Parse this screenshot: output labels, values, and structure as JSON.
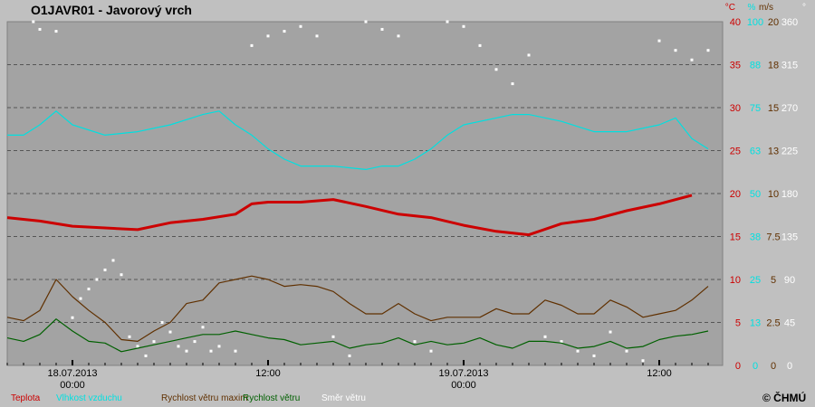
{
  "chart_data": {
    "type": "line",
    "title": "O1JAVR01 - Javorový vrch",
    "copyright": "© ČHMÚ",
    "hours_span": 46,
    "x_ticks": [
      {
        "hour": 0,
        "label": "18.07.2013",
        "label2": "00:00"
      },
      {
        "hour": 12,
        "label": "12:00",
        "label2": ""
      },
      {
        "hour": 24,
        "label": "19.07.2013",
        "label2": "00:00"
      },
      {
        "hour": 36,
        "label": "12:00",
        "label2": ""
      }
    ],
    "axes": [
      {
        "unit": "°C",
        "color": "#cc0000",
        "min": 0,
        "max": 40,
        "ticks": [
          "0",
          "5",
          "10",
          "15",
          "20",
          "25",
          "30",
          "35",
          "40"
        ]
      },
      {
        "unit": "%",
        "color": "#00e0e0",
        "min": 0,
        "max": 100,
        "ticks": [
          "0",
          "13",
          "25",
          "38",
          "50",
          "63",
          "75",
          "88",
          "100"
        ]
      },
      {
        "unit": "m/s",
        "color": "#603000",
        "min": 0,
        "max": 20,
        "ticks": [
          "0",
          "2.5",
          "5",
          "7.5",
          "10",
          "13",
          "15",
          "18",
          "20"
        ]
      },
      {
        "unit": "°",
        "color": "#ffffff",
        "min": 0,
        "max": 360,
        "ticks": [
          "0",
          "45",
          "90",
          "135",
          "180",
          "225",
          "270",
          "315",
          "360"
        ]
      }
    ],
    "series": [
      {
        "name": "Teplota",
        "axis": 0,
        "color": "#cc0000",
        "style": "line-thick",
        "points": [
          [
            -4,
            17.2
          ],
          [
            -2,
            16.8
          ],
          [
            0,
            16.2
          ],
          [
            2,
            16.0
          ],
          [
            4,
            15.8
          ],
          [
            6,
            16.6
          ],
          [
            8,
            17.0
          ],
          [
            10,
            17.6
          ],
          [
            11,
            18.8
          ],
          [
            12,
            19.0
          ],
          [
            14,
            19.0
          ],
          [
            16,
            19.3
          ],
          [
            18,
            18.5
          ],
          [
            20,
            17.6
          ],
          [
            22,
            17.2
          ],
          [
            24,
            16.3
          ],
          [
            26,
            15.6
          ],
          [
            28,
            15.2
          ],
          [
            30,
            16.5
          ],
          [
            32,
            17.0
          ],
          [
            34,
            18.0
          ],
          [
            36,
            18.8
          ],
          [
            38,
            19.8
          ],
          [
            40,
            20.5
          ],
          [
            41,
            21.0
          ],
          [
            42,
            20.6
          ],
          [
            42.5,
            20.5
          ]
        ]
      },
      {
        "name": "Vlhkost vzduchu",
        "axis": 1,
        "color": "#00e0e0",
        "style": "line",
        "points": [
          [
            -4,
            67
          ],
          [
            -3,
            67
          ],
          [
            -2,
            70
          ],
          [
            -1,
            74
          ],
          [
            0,
            70
          ],
          [
            2,
            67
          ],
          [
            4,
            68
          ],
          [
            6,
            70
          ],
          [
            8,
            73
          ],
          [
            9,
            74
          ],
          [
            10,
            70
          ],
          [
            11,
            67
          ],
          [
            12,
            63
          ],
          [
            13,
            60
          ],
          [
            14,
            58
          ],
          [
            16,
            58
          ],
          [
            18,
            57
          ],
          [
            19,
            58
          ],
          [
            20,
            58
          ],
          [
            21,
            60
          ],
          [
            22,
            63
          ],
          [
            23,
            67
          ],
          [
            24,
            70
          ],
          [
            26,
            72
          ],
          [
            27,
            73
          ],
          [
            28,
            73
          ],
          [
            30,
            71
          ],
          [
            32,
            68
          ],
          [
            34,
            68
          ],
          [
            36,
            70
          ],
          [
            37,
            72
          ],
          [
            38,
            66
          ],
          [
            39,
            63
          ],
          [
            40,
            62
          ],
          [
            41,
            60
          ],
          [
            42,
            58
          ],
          [
            42.5,
            61
          ]
        ]
      },
      {
        "name": "Rychlost větru maxim",
        "axis": 2,
        "color": "#603000",
        "style": "line",
        "points": [
          [
            -4,
            2.8
          ],
          [
            -3,
            2.6
          ],
          [
            -2,
            3.2
          ],
          [
            -1,
            5.0
          ],
          [
            0,
            4.0
          ],
          [
            1,
            3.2
          ],
          [
            2,
            2.5
          ],
          [
            3,
            1.5
          ],
          [
            4,
            1.4
          ],
          [
            5,
            2.0
          ],
          [
            6,
            2.5
          ],
          [
            7,
            3.6
          ],
          [
            8,
            3.8
          ],
          [
            9,
            4.8
          ],
          [
            10,
            5.0
          ],
          [
            11,
            5.2
          ],
          [
            12,
            5.0
          ],
          [
            13,
            4.6
          ],
          [
            14,
            4.7
          ],
          [
            15,
            4.6
          ],
          [
            16,
            4.3
          ],
          [
            17,
            3.6
          ],
          [
            18,
            3.0
          ],
          [
            19,
            3.0
          ],
          [
            20,
            3.6
          ],
          [
            21,
            3.0
          ],
          [
            22,
            2.6
          ],
          [
            23,
            2.8
          ],
          [
            24,
            2.8
          ],
          [
            25,
            2.8
          ],
          [
            26,
            3.3
          ],
          [
            27,
            3.0
          ],
          [
            28,
            3.0
          ],
          [
            29,
            3.8
          ],
          [
            30,
            3.5
          ],
          [
            31,
            3.0
          ],
          [
            32,
            3.0
          ],
          [
            33,
            3.8
          ],
          [
            34,
            3.4
          ],
          [
            35,
            2.8
          ],
          [
            36,
            3.0
          ],
          [
            37,
            3.2
          ],
          [
            38,
            3.8
          ],
          [
            39,
            4.6
          ],
          [
            40,
            5.6
          ],
          [
            41,
            8.0
          ],
          [
            41.5,
            6.8
          ],
          [
            42,
            5.0
          ],
          [
            42.5,
            4.8
          ]
        ]
      },
      {
        "name": "Rychlost větru",
        "axis": 2,
        "color": "#006000",
        "style": "line",
        "points": [
          [
            -4,
            1.6
          ],
          [
            -3,
            1.4
          ],
          [
            -2,
            1.8
          ],
          [
            -1,
            2.7
          ],
          [
            0,
            2.0
          ],
          [
            1,
            1.4
          ],
          [
            2,
            1.3
          ],
          [
            3,
            0.8
          ],
          [
            4,
            1.0
          ],
          [
            5,
            1.2
          ],
          [
            6,
            1.4
          ],
          [
            7,
            1.6
          ],
          [
            8,
            1.8
          ],
          [
            9,
            1.8
          ],
          [
            10,
            2.0
          ],
          [
            11,
            1.8
          ],
          [
            12,
            1.6
          ],
          [
            13,
            1.5
          ],
          [
            14,
            1.2
          ],
          [
            15,
            1.3
          ],
          [
            16,
            1.4
          ],
          [
            17,
            1.0
          ],
          [
            18,
            1.2
          ],
          [
            19,
            1.3
          ],
          [
            20,
            1.6
          ],
          [
            21,
            1.2
          ],
          [
            22,
            1.4
          ],
          [
            23,
            1.2
          ],
          [
            24,
            1.3
          ],
          [
            25,
            1.6
          ],
          [
            26,
            1.2
          ],
          [
            27,
            1.0
          ],
          [
            28,
            1.4
          ],
          [
            29,
            1.4
          ],
          [
            30,
            1.3
          ],
          [
            31,
            1.0
          ],
          [
            32,
            1.1
          ],
          [
            33,
            1.4
          ],
          [
            34,
            1.0
          ],
          [
            35,
            1.1
          ],
          [
            36,
            1.5
          ],
          [
            37,
            1.7
          ],
          [
            38,
            1.8
          ],
          [
            39,
            2.0
          ],
          [
            40,
            2.0
          ],
          [
            41,
            2.2
          ],
          [
            41.5,
            1.6
          ],
          [
            42,
            1.2
          ],
          [
            42.5,
            1.5
          ]
        ]
      },
      {
        "name": "Směr  větru",
        "axis": 3,
        "color": "#ffffff",
        "style": "dots",
        "points": [
          [
            -2.4,
            360
          ],
          [
            -2.0,
            352
          ],
          [
            -1.0,
            350
          ],
          [
            0,
            50
          ],
          [
            0.5,
            70
          ],
          [
            1,
            80
          ],
          [
            1.5,
            90
          ],
          [
            2,
            100
          ],
          [
            2.5,
            110
          ],
          [
            3,
            95
          ],
          [
            3.5,
            30
          ],
          [
            4,
            20
          ],
          [
            4.5,
            10
          ],
          [
            5,
            25
          ],
          [
            5.5,
            45
          ],
          [
            6,
            35
          ],
          [
            6.5,
            20
          ],
          [
            7,
            15
          ],
          [
            7.5,
            25
          ],
          [
            8,
            40
          ],
          [
            8.5,
            15
          ],
          [
            9,
            20
          ],
          [
            10,
            15
          ],
          [
            11,
            335
          ],
          [
            12,
            345
          ],
          [
            13,
            350
          ],
          [
            14,
            355
          ],
          [
            15,
            345
          ],
          [
            16,
            30
          ],
          [
            17,
            10
          ],
          [
            18,
            360
          ],
          [
            19,
            352
          ],
          [
            20,
            345
          ],
          [
            21,
            25
          ],
          [
            22,
            15
          ],
          [
            23,
            360
          ],
          [
            24,
            355
          ],
          [
            25,
            335
          ],
          [
            26,
            310
          ],
          [
            27,
            295
          ],
          [
            28,
            325
          ],
          [
            29,
            30
          ],
          [
            30,
            25
          ],
          [
            31,
            15
          ],
          [
            32,
            10
          ],
          [
            33,
            35
          ],
          [
            34,
            15
          ],
          [
            35,
            5
          ],
          [
            36,
            340
          ],
          [
            37,
            330
          ],
          [
            38,
            320
          ],
          [
            39,
            330
          ],
          [
            40,
            315
          ],
          [
            41,
            330
          ],
          [
            42,
            340
          ],
          [
            42.5,
            325
          ]
        ]
      }
    ]
  }
}
